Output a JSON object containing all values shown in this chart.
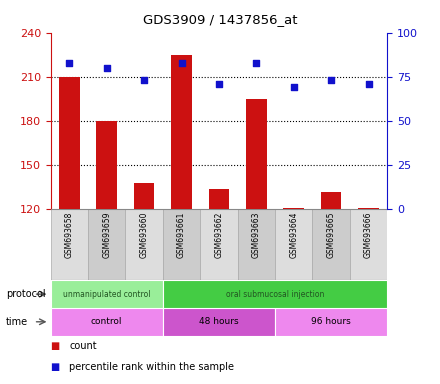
{
  "title": "GDS3909 / 1437856_at",
  "samples": [
    "GSM693658",
    "GSM693659",
    "GSM693660",
    "GSM693661",
    "GSM693662",
    "GSM693663",
    "GSM693664",
    "GSM693665",
    "GSM693666"
  ],
  "counts": [
    210,
    180,
    138,
    225,
    134,
    195,
    121,
    132,
    121
  ],
  "percentile_ranks": [
    83,
    80,
    73,
    83,
    71,
    83,
    69,
    73,
    71
  ],
  "ylim_left": [
    120,
    240
  ],
  "ylim_right": [
    0,
    100
  ],
  "yticks_left": [
    120,
    150,
    180,
    210,
    240
  ],
  "yticks_right": [
    0,
    25,
    50,
    75,
    100
  ],
  "bar_color": "#cc1111",
  "dot_color": "#1111cc",
  "protocol_groups": [
    {
      "label": "unmanipulated control",
      "start": 0,
      "end": 3,
      "color": "#99ee99"
    },
    {
      "label": "oral submucosal injection",
      "start": 3,
      "end": 9,
      "color": "#44cc44"
    }
  ],
  "time_groups": [
    {
      "label": "control",
      "start": 0,
      "end": 3,
      "color": "#ee88ee"
    },
    {
      "label": "48 hours",
      "start": 3,
      "end": 6,
      "color": "#cc55cc"
    },
    {
      "label": "96 hours",
      "start": 6,
      "end": 9,
      "color": "#ee88ee"
    }
  ],
  "legend_count_label": "count",
  "legend_pct_label": "percentile rank within the sample",
  "protocol_label": "protocol",
  "time_label": "time",
  "bg_color": "#ffffff",
  "tick_label_color_left": "#cc1111",
  "tick_label_color_right": "#1111cc",
  "bar_bottom": 120,
  "label_bg": "#cccccc",
  "label_col_even": "#dddddd",
  "label_col_odd": "#cccccc"
}
